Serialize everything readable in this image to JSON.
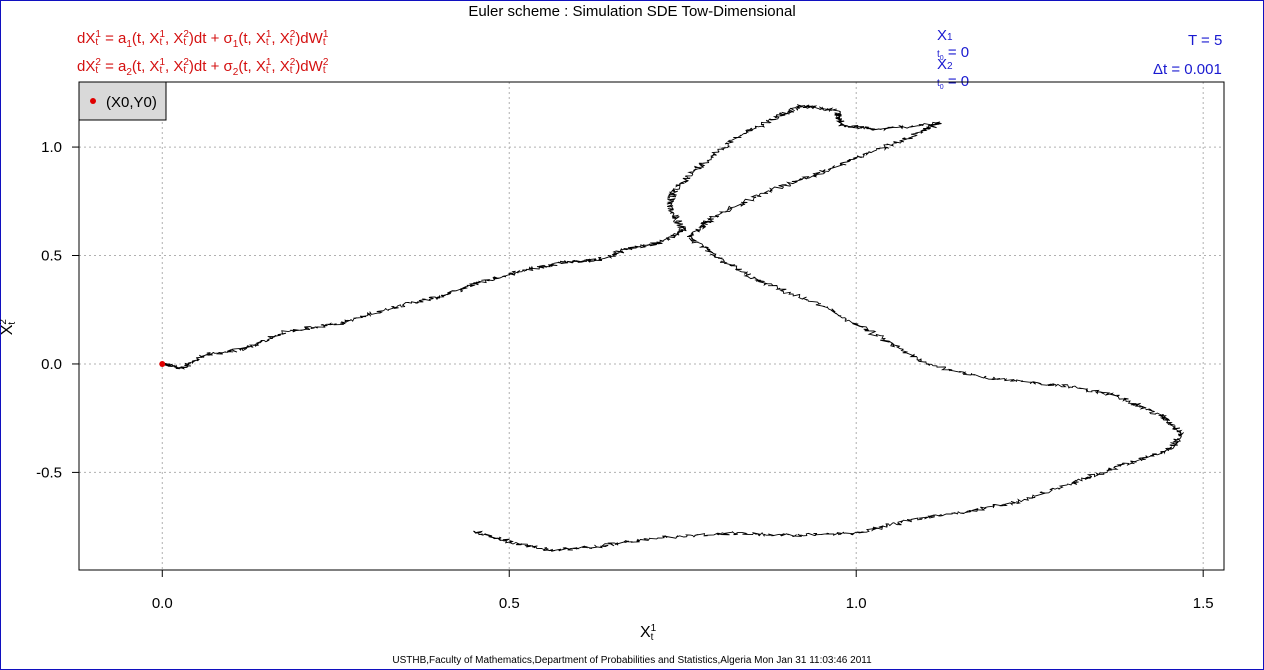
{
  "title": "Euler scheme : Simulation SDE Tow-Dimensional",
  "equations": {
    "eq1": "dX_t^1 = a_1(t, X_t^1, X_t^2)dt + σ_1(t, X_t^1, X_t^2)dW_t^1",
    "eq2": "dX_t^2 = a_2(t, X_t^1, X_t^2)dt + σ_2(t, X_t^1, X_t^2)dW_t^2"
  },
  "initial": {
    "x1": "X_{t0}^1 = 0",
    "x2": "X_{t0}^2 = 0"
  },
  "params": {
    "T": "T = 5",
    "dt": "Δt = 0.001"
  },
  "footer": "USTHB,Faculty of Mathematics,Department of Probabilities and Statistics,Algeria Mon Jan 31 11:03:46 2011",
  "colors": {
    "equations": "#d41010",
    "params": "#1a1ad0",
    "path": "#000000",
    "start_point": "#e00000",
    "legend_bg": "#d9d9d9",
    "grid": "#b0b0b0"
  },
  "chart_data": {
    "type": "line",
    "xlabel": "X_t^1",
    "ylabel": "X_t^2",
    "xlim": [
      -0.12,
      1.53
    ],
    "ylim": [
      -0.95,
      1.3
    ],
    "x_ticks": [
      0.0,
      0.5,
      1.0,
      1.5
    ],
    "x_tick_labels": [
      "0.0",
      "0.5",
      "1.0",
      "1.5"
    ],
    "y_ticks": [
      -0.5,
      0.0,
      0.5,
      1.0
    ],
    "y_tick_labels": [
      "-0.5",
      "0.0",
      "0.5",
      "1.0"
    ],
    "grid": true,
    "legend": {
      "placement": "top-left",
      "entries": [
        "(X0,Y0)"
      ]
    },
    "start_point": {
      "x": 0.0,
      "y": 0.0
    },
    "path_waypoints": [
      [
        0.0,
        0.0
      ],
      [
        0.03,
        -0.02
      ],
      [
        0.06,
        0.04
      ],
      [
        0.12,
        0.07
      ],
      [
        0.18,
        0.15
      ],
      [
        0.26,
        0.19
      ],
      [
        0.33,
        0.26
      ],
      [
        0.4,
        0.31
      ],
      [
        0.46,
        0.38
      ],
      [
        0.52,
        0.43
      ],
      [
        0.58,
        0.47
      ],
      [
        0.63,
        0.48
      ],
      [
        0.67,
        0.53
      ],
      [
        0.72,
        0.56
      ],
      [
        0.75,
        0.62
      ],
      [
        0.73,
        0.73
      ],
      [
        0.74,
        0.81
      ],
      [
        0.78,
        0.93
      ],
      [
        0.83,
        1.05
      ],
      [
        0.88,
        1.13
      ],
      [
        0.92,
        1.19
      ],
      [
        0.97,
        1.17
      ],
      [
        0.98,
        1.1
      ],
      [
        1.03,
        1.08
      ],
      [
        1.12,
        1.11
      ],
      [
        1.08,
        1.05
      ],
      [
        1.01,
        0.96
      ],
      [
        0.94,
        0.87
      ],
      [
        0.86,
        0.78
      ],
      [
        0.79,
        0.67
      ],
      [
        0.76,
        0.58
      ],
      [
        0.8,
        0.49
      ],
      [
        0.86,
        0.38
      ],
      [
        0.95,
        0.27
      ],
      [
        1.03,
        0.13
      ],
      [
        1.1,
        0.0
      ],
      [
        1.2,
        -0.07
      ],
      [
        1.3,
        -0.1
      ],
      [
        1.38,
        -0.15
      ],
      [
        1.44,
        -0.24
      ],
      [
        1.47,
        -0.32
      ],
      [
        1.45,
        -0.4
      ],
      [
        1.38,
        -0.47
      ],
      [
        1.32,
        -0.54
      ],
      [
        1.24,
        -0.63
      ],
      [
        1.16,
        -0.68
      ],
      [
        1.08,
        -0.72
      ],
      [
        1.0,
        -0.78
      ],
      [
        0.91,
        -0.79
      ],
      [
        0.82,
        -0.78
      ],
      [
        0.72,
        -0.8
      ],
      [
        0.63,
        -0.84
      ],
      [
        0.56,
        -0.86
      ],
      [
        0.5,
        -0.82
      ],
      [
        0.45,
        -0.77
      ]
    ]
  }
}
